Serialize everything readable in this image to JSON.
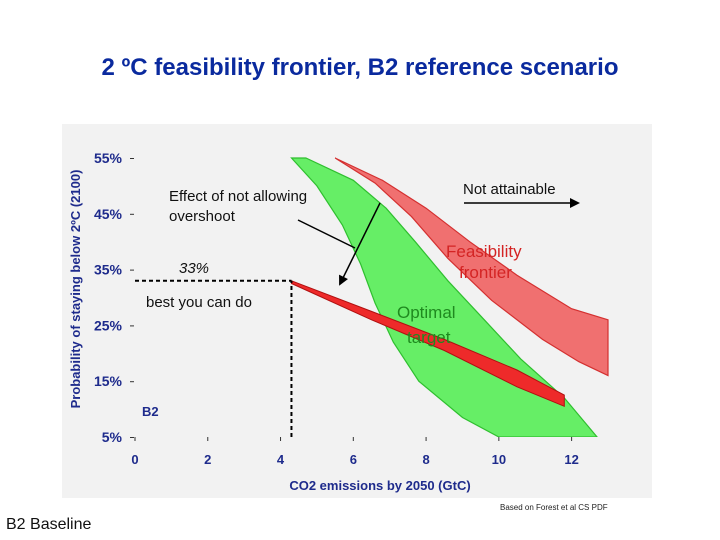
{
  "slide": {
    "title": "2 ºC feasibility frontier, B2 reference scenario",
    "source_note": "Based on Forest et al CS PDF",
    "footer_label": "B2 Baseline"
  },
  "chart_data": {
    "type": "area",
    "title": "2 ºC feasibility frontier, B2 reference scenario",
    "xlabel": "CO2 emissions by 2050 (GtC)",
    "ylabel": "Probability of staying below 2ºC (2100)",
    "xlim": [
      0,
      13
    ],
    "ylim": [
      5,
      55
    ],
    "x_ticks": [
      0,
      2,
      4,
      6,
      8,
      10,
      12
    ],
    "x_tick_labels": [
      "0",
      "2",
      "4",
      "6",
      "8",
      "10",
      "12"
    ],
    "y_ticks": [
      55,
      45,
      35,
      25,
      15,
      5
    ],
    "y_tick_labels": [
      "55%",
      "45%",
      "35%",
      "25%",
      "15%",
      "5%"
    ],
    "grid": false,
    "colors": {
      "frontier": "#f07070",
      "optimal": "#66ee66",
      "b2": "#ee2a2a",
      "axis_text": "#1e2b8c"
    },
    "bands": [
      {
        "name": "Not attainable / Feasibility frontier",
        "color": "#f07070",
        "upper": [
          {
            "x": 5.5,
            "y": 55
          },
          {
            "x": 6.8,
            "y": 51
          },
          {
            "x": 8.0,
            "y": 46
          },
          {
            "x": 9.2,
            "y": 40
          },
          {
            "x": 10.5,
            "y": 34
          },
          {
            "x": 12.0,
            "y": 28
          },
          {
            "x": 13.0,
            "y": 26
          }
        ],
        "lower": [
          {
            "x": 5.5,
            "y": 55
          },
          {
            "x": 6.6,
            "y": 50.5
          },
          {
            "x": 7.6,
            "y": 44.5
          },
          {
            "x": 8.6,
            "y": 37
          },
          {
            "x": 9.8,
            "y": 29.5
          },
          {
            "x": 11.2,
            "y": 22.5
          },
          {
            "x": 12.2,
            "y": 18.5
          },
          {
            "x": 13.0,
            "y": 16
          }
        ]
      },
      {
        "name": "Optimal target",
        "color": "#66ee66",
        "upper": [
          {
            "x": 4.7,
            "y": 55
          },
          {
            "x": 6.0,
            "y": 51
          },
          {
            "x": 6.9,
            "y": 46
          },
          {
            "x": 7.7,
            "y": 40
          },
          {
            "x": 8.6,
            "y": 33
          },
          {
            "x": 9.6,
            "y": 26
          },
          {
            "x": 10.6,
            "y": 19
          },
          {
            "x": 11.8,
            "y": 12
          },
          {
            "x": 12.7,
            "y": 5
          }
        ],
        "lower": [
          {
            "x": 4.3,
            "y": 55
          },
          {
            "x": 5.0,
            "y": 50
          },
          {
            "x": 5.7,
            "y": 43
          },
          {
            "x": 6.2,
            "y": 36
          },
          {
            "x": 6.6,
            "y": 29
          },
          {
            "x": 7.1,
            "y": 22
          },
          {
            "x": 7.8,
            "y": 15
          },
          {
            "x": 9.0,
            "y": 8.5
          },
          {
            "x": 10.0,
            "y": 5
          }
        ]
      }
    ],
    "b2_band": {
      "name": "B2",
      "color": "#ee2a2a",
      "upper": [
        {
          "x": 4.3,
          "y": 33
        },
        {
          "x": 6.5,
          "y": 27.5
        },
        {
          "x": 8.5,
          "y": 22.5
        },
        {
          "x": 10.5,
          "y": 17
        },
        {
          "x": 11.8,
          "y": 12.5
        }
      ],
      "lower": [
        {
          "x": 4.3,
          "y": 32.5
        },
        {
          "x": 6.5,
          "y": 26
        },
        {
          "x": 8.5,
          "y": 20.5
        },
        {
          "x": 10.5,
          "y": 14
        },
        {
          "x": 11.8,
          "y": 10.5
        }
      ]
    },
    "reference_lines": [
      {
        "type": "horizontal",
        "y": 33,
        "x_from": 0,
        "x_to": 4.3,
        "style": "dashed"
      },
      {
        "type": "vertical",
        "x": 4.3,
        "y_from": 5,
        "y_to": 33,
        "style": "dashed"
      }
    ],
    "annotations": {
      "overshoot": [
        "Effect of not allowing",
        "overshoot"
      ],
      "not_attainable": "Not attainable",
      "frontier": [
        "Feasibility",
        "frontier"
      ],
      "optimal": [
        "Optimal",
        "target"
      ],
      "level": "33%",
      "best": "best you can do",
      "b2": "B2"
    }
  }
}
